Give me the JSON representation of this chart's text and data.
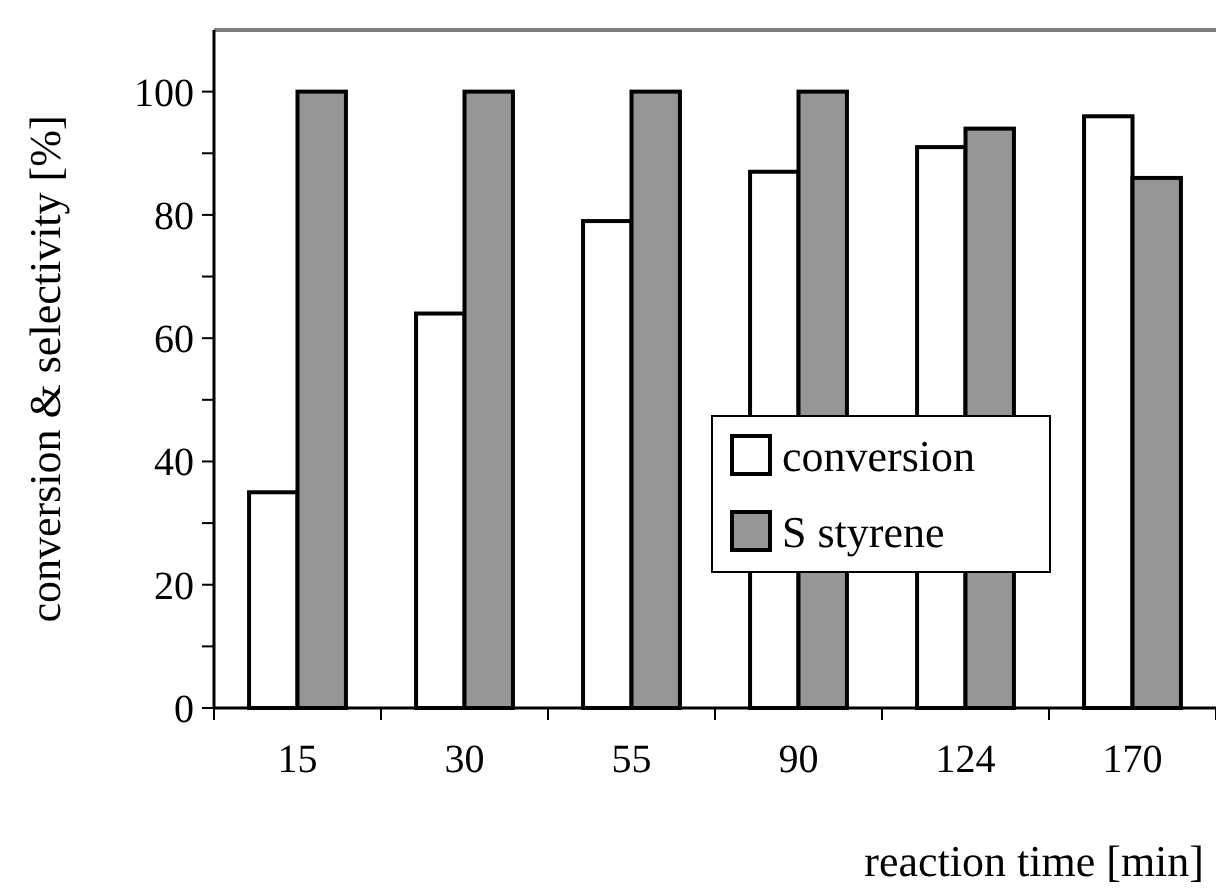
{
  "chart_data": {
    "type": "bar",
    "xlabel": "reaction time [min]",
    "ylabel": "conversion & selectivity [%]",
    "categories": [
      "15",
      "30",
      "55",
      "90",
      "124",
      "170"
    ],
    "series": [
      {
        "name": "conversion",
        "color": "#ffffff",
        "values": [
          35,
          64,
          79,
          87,
          91,
          96
        ]
      },
      {
        "name": "S styrene",
        "color": "#969696",
        "values": [
          100,
          100,
          100,
          100,
          94,
          86
        ]
      }
    ],
    "ylim": [
      0,
      110
    ],
    "yticks": [
      0,
      {
        "value": 10,
        "label": null
      },
      20,
      {
        "value": 30,
        "label": null
      },
      40,
      {
        "value": 50,
        "label": null
      },
      60,
      {
        "value": 70,
        "label": null
      },
      80,
      {
        "value": 90,
        "label": null
      },
      100
    ],
    "grid": false,
    "legend": "right"
  }
}
